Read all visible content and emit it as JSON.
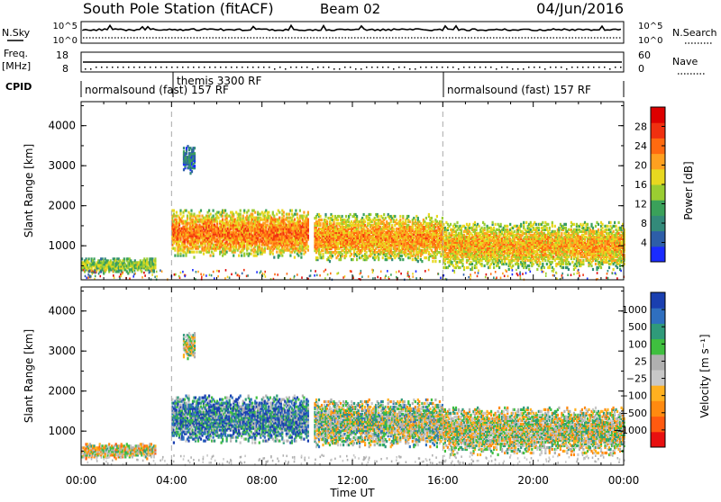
{
  "header": {
    "station": "South Pole Station (fitACF)",
    "beam": "Beam 02",
    "date": "04/Jun/2016"
  },
  "status_panels": {
    "nsky_label": "N.Sky",
    "nsky_ticks": [
      "10^5",
      "10^0"
    ],
    "nsearch_label": "N.Search",
    "nsearch_ticks": [
      "10^5",
      "10^0"
    ],
    "freq_label_1": "Freq.",
    "freq_label_2": "[MHz]",
    "freq_ticks": [
      "18",
      "8"
    ],
    "nave_label": "Nave",
    "nave_ticks": [
      "60",
      "0"
    ],
    "cpid_label": "CPID",
    "cpid_segments": [
      {
        "label": "normalsound (fast) 157 RF",
        "start_hour": 0,
        "end_hour": 4
      },
      {
        "label": "themis 3300 RF",
        "start_hour": 4,
        "end_hour": 16
      },
      {
        "label": "normalsound (fast) 157 RF",
        "start_hour": 16,
        "end_hour": 24
      }
    ]
  },
  "chart_data": [
    {
      "type": "heatmap",
      "quantity": "power",
      "ylabel": "Slant Range [km]",
      "yticks": [
        1000,
        2000,
        3000,
        4000
      ],
      "ylim": [
        150,
        4600
      ],
      "xlim": [
        0,
        24
      ],
      "xticks": [
        0,
        4,
        8,
        12,
        16,
        20,
        24
      ],
      "colorbar": {
        "label": "Power [dB]",
        "ticks": [
          "4",
          "8",
          "12",
          "16",
          "20",
          "24",
          "28"
        ],
        "colors": [
          "#1a2bff",
          "#2d5ea8",
          "#338a7a",
          "#3aa15a",
          "#9acd32",
          "#e8d820",
          "#ffa020",
          "#ff6a10",
          "#f03010",
          "#dd0000"
        ]
      },
      "echo_regions": [
        {
          "t0": 0.0,
          "t1": 3.3,
          "r0": 300,
          "r1": 700,
          "intensity": 0.45
        },
        {
          "t0": 4.0,
          "t1": 10.0,
          "r0": 700,
          "r1": 1900,
          "intensity": 0.75
        },
        {
          "t0": 4.5,
          "t1": 5.0,
          "r0": 2800,
          "r1": 3500,
          "intensity": 0.2
        },
        {
          "t0": 10.3,
          "t1": 16.0,
          "r0": 600,
          "r1": 1800,
          "intensity": 0.7
        },
        {
          "t0": 16.0,
          "t1": 24.0,
          "r0": 400,
          "r1": 1600,
          "intensity": 0.65
        }
      ],
      "vertical_markers": [
        4,
        16
      ]
    },
    {
      "type": "heatmap",
      "quantity": "velocity",
      "ylabel": "Slant Range [km]",
      "yticks": [
        1000,
        2000,
        3000,
        4000
      ],
      "ylim": [
        150,
        4600
      ],
      "xlim": [
        0,
        24
      ],
      "xticks": [
        0,
        4,
        8,
        12,
        16,
        20,
        24
      ],
      "xticklabels": [
        "00:00",
        "04:00",
        "08:00",
        "12:00",
        "16:00",
        "20:00",
        "00:00"
      ],
      "xlabel": "Time UT",
      "colorbar": {
        "label": "Velocity [m s⁻¹]",
        "ticks": [
          "1000",
          "500",
          "100",
          "25",
          "−25",
          "−100",
          "−500",
          "−1000"
        ],
        "colors": [
          "#1a3fb0",
          "#2f6fbf",
          "#2f9a7a",
          "#3fbf3f",
          "#b0b0b0",
          "#c8c8c8",
          "#ffb020",
          "#ff8a10",
          "#ff5a10",
          "#e81010"
        ]
      },
      "echo_regions": [
        {
          "t0": 0.0,
          "t1": 3.3,
          "r0": 300,
          "r1": 700,
          "intensity": 0.55
        },
        {
          "t0": 4.0,
          "t1": 10.0,
          "r0": 700,
          "r1": 1900,
          "intensity": 0.2
        },
        {
          "t0": 4.5,
          "t1": 5.0,
          "r0": 2800,
          "r1": 3500,
          "intensity": 0.5
        },
        {
          "t0": 10.3,
          "t1": 16.0,
          "r0": 600,
          "r1": 1800,
          "intensity": 0.45
        },
        {
          "t0": 16.0,
          "t1": 24.0,
          "r0": 400,
          "r1": 1600,
          "intensity": 0.5
        }
      ],
      "vertical_markers": [
        4,
        16
      ]
    }
  ]
}
